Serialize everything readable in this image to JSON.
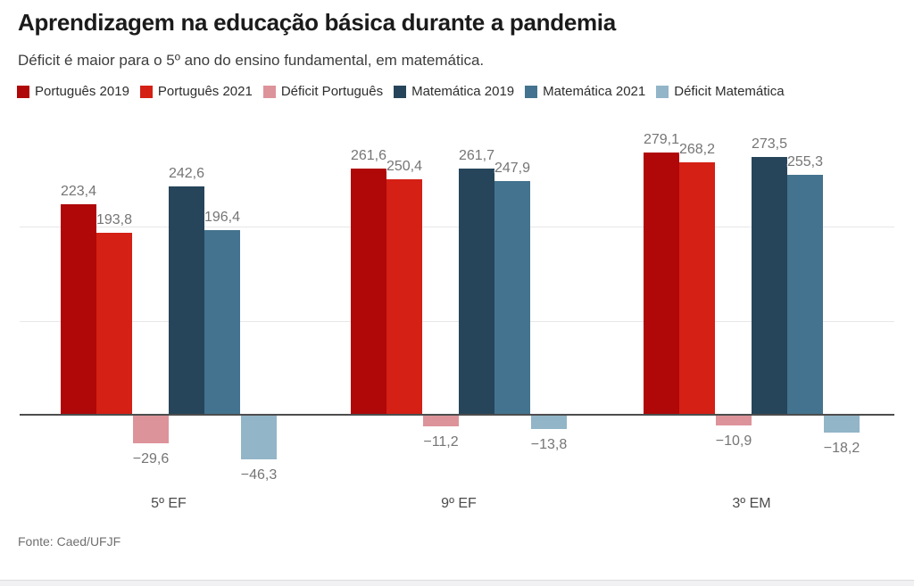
{
  "header": {
    "title": "Aprendizagem na educação básica durante a pandemia",
    "subtitle": "Déficit é maior para o 5º ano do ensino fundamental, em matemática."
  },
  "footer": {
    "source": "Fonte: Caed/UFJF"
  },
  "colors": {
    "portugues_2019": "#b00708",
    "portugues_2021": "#d42015",
    "deficit_portugues": "#dd939a",
    "matematica_2019": "#26455a",
    "matematica_2021": "#44738f",
    "deficit_matematica": "#92b5c8",
    "axis": "#4d4d4d",
    "gridline": "#e7e7e7",
    "value_label": "#757575",
    "title_text": "#1b1b1b"
  },
  "chart_data": {
    "type": "bar",
    "title": "Aprendizagem na educação básica durante a pandemia",
    "subtitle": "Déficit é maior para o 5º ano do ensino fundamental, em matemática.",
    "categories": [
      "5º EF",
      "9º EF",
      "3º EM"
    ],
    "series": [
      {
        "name": "Português 2019",
        "color": "#b00708",
        "values": [
          223.4,
          261.6,
          279.1
        ],
        "labels": [
          "223,4",
          "261,6",
          "279,1"
        ]
      },
      {
        "name": "Português 2021",
        "color": "#d42015",
        "values": [
          193.8,
          250.4,
          268.2
        ],
        "labels": [
          "193,8",
          "250,4",
          "268,2"
        ]
      },
      {
        "name": "Déficit Português",
        "color": "#dd939a",
        "values": [
          -29.6,
          -11.2,
          -10.9
        ],
        "labels": [
          "−29,6",
          "−11,2",
          "−10,9"
        ]
      },
      {
        "name": "Matemática 2019",
        "color": "#26455a",
        "values": [
          242.6,
          261.7,
          273.5
        ],
        "labels": [
          "242,6",
          "261,7",
          "273,5"
        ]
      },
      {
        "name": "Matemática 2021",
        "color": "#44738f",
        "values": [
          196.4,
          247.9,
          255.3
        ],
        "labels": [
          "196,4",
          "247,9",
          "255,3"
        ]
      },
      {
        "name": "Déficit Matemática",
        "color": "#92b5c8",
        "values": [
          -46.3,
          -13.8,
          -18.2
        ],
        "labels": [
          "−46,3",
          "−13,8",
          "−18,2"
        ]
      }
    ],
    "ylim": [
      -60,
      300
    ],
    "gridline_values": [
      100,
      200
    ],
    "zero_baseline": true,
    "grid": true,
    "legend_position": "top",
    "y_axis_labels_visible": false,
    "source": "Fonte: Caed/UFJF"
  }
}
